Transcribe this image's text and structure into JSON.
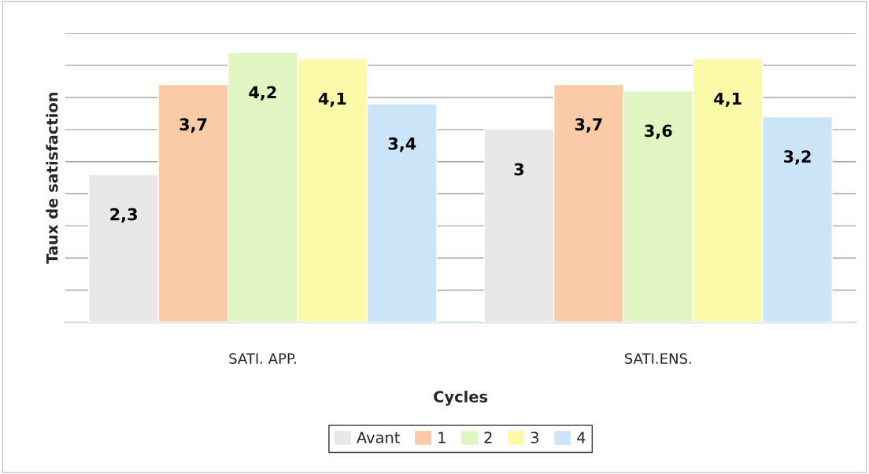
{
  "chart_data": {
    "type": "bar",
    "xlabel": "Cycles",
    "ylabel": "Taux de satisfaction",
    "categories": [
      "SATI. APP.",
      "SATI.ENS."
    ],
    "series": [
      {
        "name": "Avant",
        "color": "#e7e7e7",
        "values": [
          2.3,
          3
        ],
        "value_labels": [
          "2,3",
          "3"
        ]
      },
      {
        "name": "1",
        "color": "#fbcaa7",
        "values": [
          3.7,
          3.7
        ],
        "value_labels": [
          "3,7",
          "3,7"
        ]
      },
      {
        "name": "2",
        "color": "#e1f5c3",
        "values": [
          4.2,
          3.6
        ],
        "value_labels": [
          "4,2",
          "3,6"
        ]
      },
      {
        "name": "3",
        "color": "#fafaa9",
        "values": [
          4.1,
          4.1
        ],
        "value_labels": [
          "4,1",
          "4,1"
        ]
      },
      {
        "name": "4",
        "color": "#cce4f8",
        "values": [
          3.4,
          3.2
        ],
        "value_labels": [
          "3,4",
          "3,2"
        ]
      }
    ],
    "ylim": [
      0,
      4.5
    ],
    "yticks": [
      {
        "value": 0,
        "label": null
      },
      {
        "value": 0.5,
        "label": null
      },
      {
        "value": 1,
        "label": null
      },
      {
        "value": 1.5,
        "label": null
      },
      {
        "value": 2,
        "label": null
      },
      {
        "value": 2.5,
        "label": null
      },
      {
        "value": 3,
        "label": null
      },
      {
        "value": 3.5,
        "label": null
      },
      {
        "value": 4,
        "label": null
      },
      {
        "value": 4.5,
        "label": null
      }
    ],
    "tick_labels": "x",
    "grid": "y",
    "legend": "bottom"
  }
}
